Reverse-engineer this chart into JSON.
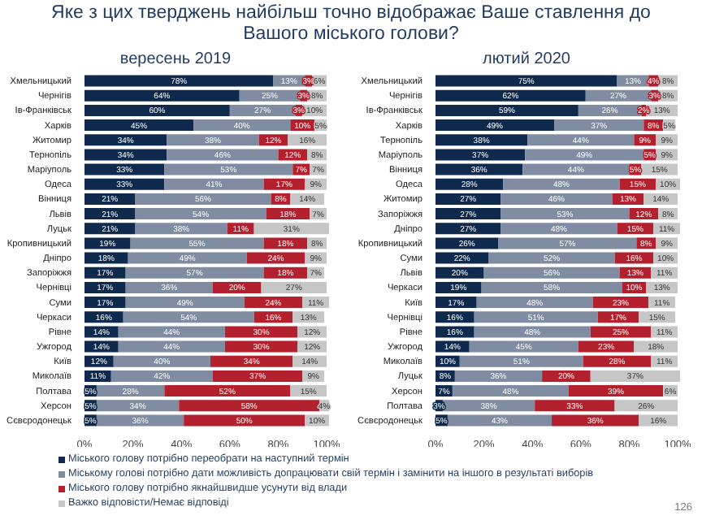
{
  "chart_data": [
    {
      "type": "bar",
      "orientation": "horizontal",
      "stacked": true,
      "legend": "bottom",
      "title": "Яке з цих тверджень найбільш точно відображає Ваше ставлення до Вашого міського голови?",
      "subtitle": "вересень 2019",
      "categories": [
        "Хмельницький",
        "Чернігів",
        "Ів-Франківськ",
        "Харків",
        "Житомир",
        "Тернопіль",
        "Маріуполь",
        "Одеса",
        "Вінниця",
        "Львів",
        "Луцьк",
        "Кропивницький",
        "Дніпро",
        "Запоріжжя",
        "Чернівці",
        "Суми",
        "Черкаси",
        "Рівне",
        "Ужгород",
        "Київ",
        "Миколаїв",
        "Полтава",
        "Херсон",
        "Сєвєродонецьк"
      ],
      "xlim": [
        0,
        102
      ],
      "xticks": [
        {
          "value": 0,
          "label": "0%"
        },
        {
          "value": 20,
          "label": "20%"
        },
        {
          "value": 40,
          "label": "40%"
        },
        {
          "value": 60,
          "label": "60%"
        },
        {
          "value": 80,
          "label": "80%"
        },
        {
          "value": 100,
          "label": "100%"
        }
      ],
      "series": [
        {
          "name": "Міського голову  потрібно переобрати на наступний термін",
          "color": "#0f2a4d",
          "values": [
            78,
            64,
            60,
            45,
            34,
            34,
            33,
            33,
            21,
            21,
            21,
            19,
            18,
            17,
            17,
            17,
            16,
            14,
            14,
            12,
            11,
            5,
            5,
            5
          ],
          "value_labels": [
            "78%",
            "64%",
            "60%",
            "45%",
            "34%",
            "34%",
            "33%",
            "33%",
            "21%",
            "21%",
            "21%",
            "19%",
            "18%",
            "17%",
            "17%",
            "17%",
            "16%",
            "14%",
            "14%",
            "12%",
            "11%",
            "5%",
            "5%",
            "5%"
          ]
        },
        {
          "name": "Міському голові потрібно дати можливість допрацювати свій термін і замінити на іншого в результаті виборів",
          "color": "#7f8ca1",
          "values": [
            13,
            25,
            27,
            40,
            38,
            46,
            53,
            41,
            56,
            54,
            38,
            55,
            49,
            57,
            36,
            49,
            54,
            44,
            44,
            40,
            42,
            28,
            34,
            36
          ],
          "value_labels": [
            "13%",
            "25%",
            "27%",
            "40%",
            "38%",
            "46%",
            "53%",
            "41%",
            "56%",
            "54%",
            "38%",
            "55%",
            "49%",
            "57%",
            "36%",
            "49%",
            "54%",
            "44%",
            "44%",
            "40%",
            "42%",
            "28%",
            "34%",
            "36%"
          ]
        },
        {
          "name": "Міського голову потрібно якнайшвидше усунути від влади",
          "color": "#b3202e",
          "values": [
            3,
            3,
            3,
            10,
            12,
            12,
            7,
            17,
            8,
            18,
            11,
            18,
            24,
            18,
            20,
            24,
            16,
            30,
            30,
            34,
            37,
            52,
            58,
            50
          ],
          "value_labels": [
            "3%",
            "3%",
            "3%",
            "10%",
            "12%",
            "12%",
            "7%",
            "17%",
            "8%",
            "18%",
            "11%",
            "18%",
            "24%",
            "18%",
            "20%",
            "24%",
            "16%",
            "30%",
            "30%",
            "34%",
            "37%",
            "52%",
            "58%",
            "50%"
          ]
        },
        {
          "name": "Важко відповісти/Немає відповіді",
          "color": "#c6c6c6",
          "values": [
            6,
            8,
            10,
            5,
            16,
            8,
            7,
            9,
            14,
            7,
            31,
            8,
            9,
            7,
            27,
            11,
            13,
            12,
            12,
            14,
            9,
            15,
            4,
            10
          ],
          "value_labels": [
            "6%",
            "8%",
            "10%",
            "5%",
            "16%",
            "8%",
            "7%",
            "9%",
            "14%",
            "7%",
            "31%",
            "8%",
            "9%",
            "7%",
            "27%",
            "11%",
            "13%",
            "12%",
            "12%",
            "14%",
            "9%",
            "15%",
            "4%",
            "10%"
          ]
        }
      ]
    },
    {
      "type": "bar",
      "orientation": "horizontal",
      "stacked": true,
      "subtitle": "лютий 2020",
      "annotations": [
        "126"
      ],
      "categories": [
        "Хмельницький",
        "Чернігів",
        "Ів-Франківськ",
        "Харків",
        "Тернопіль",
        "Маріуполь",
        "Вінниця",
        "Одеса",
        "Житомир",
        "Запоріжжя",
        "Дніпро",
        "Кропивницький",
        "Суми",
        "Львів",
        "Черкаси",
        "Київ",
        "Чернівці",
        "Рівне",
        "Ужгород",
        "Миколаїв",
        "Луцьк",
        "Херсон",
        "Полтава",
        "Сєвєродонецьк"
      ],
      "xlim": [
        0,
        102
      ],
      "xticks": [
        {
          "value": 0,
          "label": "0%"
        },
        {
          "value": 20,
          "label": "20%"
        },
        {
          "value": 40,
          "label": "40%"
        },
        {
          "value": 60,
          "label": "60%"
        },
        {
          "value": 80,
          "label": "80%"
        },
        {
          "value": 100,
          "label": "100%"
        }
      ],
      "series": [
        {
          "color": "#0f2a4d",
          "values": [
            75,
            62,
            59,
            49,
            38,
            37,
            36,
            28,
            27,
            27,
            27,
            26,
            22,
            20,
            19,
            17,
            16,
            16,
            14,
            10,
            8,
            7,
            3,
            5
          ],
          "value_labels": [
            "75%",
            "62%",
            "59%",
            "49%",
            "38%",
            "37%",
            "36%",
            "28%",
            "27%",
            "27%",
            "27%",
            "26%",
            "22%",
            "20%",
            "19%",
            "17%",
            "16%",
            "16%",
            "14%",
            "10%",
            "8%",
            "7%",
            "3%",
            "5%"
          ]
        },
        {
          "color": "#7f8ca1",
          "values": [
            13,
            27,
            26,
            37,
            44,
            49,
            44,
            48,
            46,
            53,
            48,
            57,
            52,
            56,
            58,
            48,
            51,
            48,
            45,
            51,
            36,
            48,
            38,
            43
          ],
          "value_labels": [
            "13%",
            "27%",
            "26%",
            "37%",
            "44%",
            "49%",
            "44%",
            "48%",
            "46%",
            "53%",
            "48%",
            "57%",
            "52%",
            "56%",
            "58%",
            "48%",
            "51%",
            "48%",
            "45%",
            "51%",
            "36%",
            "48%",
            "38%",
            "43%"
          ]
        },
        {
          "color": "#b3202e",
          "values": [
            4,
            3,
            2,
            8,
            9,
            5,
            5,
            15,
            13,
            12,
            15,
            8,
            16,
            13,
            10,
            23,
            17,
            25,
            23,
            28,
            20,
            39,
            33,
            36
          ],
          "value_labels": [
            "4%",
            "3%",
            "2%",
            "8%",
            "9%",
            "5%",
            "5%",
            "15%",
            "13%",
            "12%",
            "15%",
            "8%",
            "16%",
            "13%",
            "10%",
            "23%",
            "17%",
            "25%",
            "23%",
            "28%",
            "20%",
            "39%",
            "33%",
            "36%"
          ]
        },
        {
          "color": "#c6c6c6",
          "values": [
            8,
            8,
            13,
            5,
            9,
            9,
            15,
            10,
            14,
            8,
            11,
            9,
            10,
            11,
            13,
            11,
            15,
            11,
            18,
            11,
            37,
            6,
            26,
            16
          ],
          "value_labels": [
            "8%",
            "8%",
            "13%",
            "5%",
            "9%",
            "9%",
            "15%",
            "10%",
            "14%",
            "8%",
            "11%",
            "9%",
            "10%",
            "11%",
            "13%",
            "11%",
            "15%",
            "11%",
            "18%",
            "11%",
            "37%",
            "6%",
            "26%",
            "16%"
          ]
        }
      ]
    }
  ]
}
